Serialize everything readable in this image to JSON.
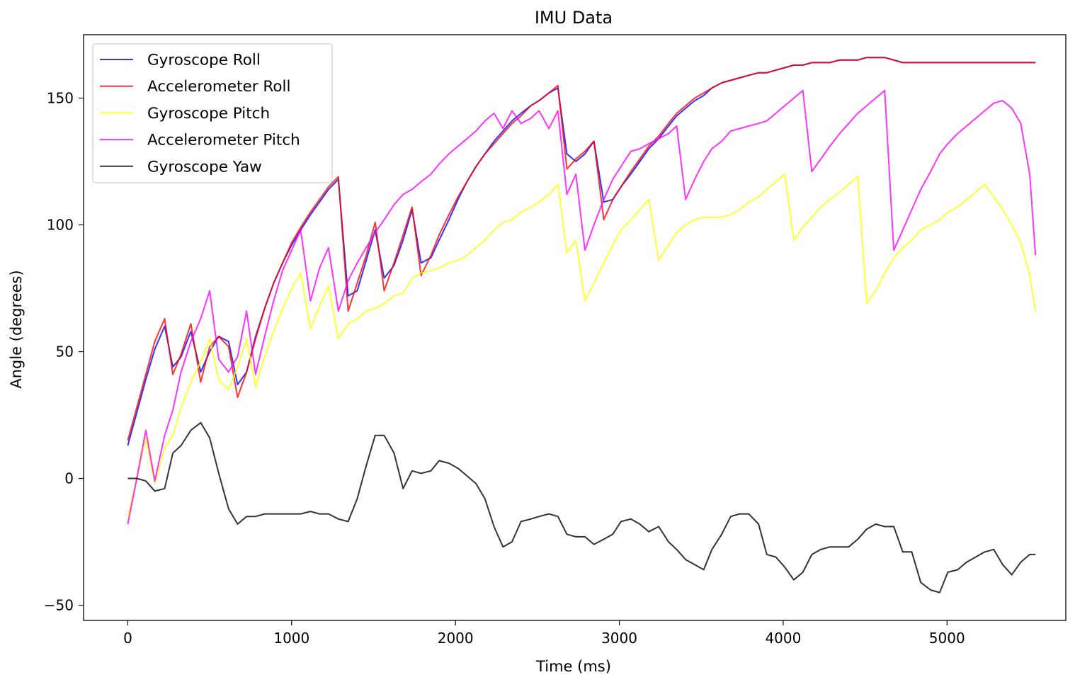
{
  "chart_data": {
    "type": "line",
    "title": "IMU Data",
    "xlabel": "Time (ms)",
    "ylabel": "Angle (degrees)",
    "xlim": [
      -270,
      5725
    ],
    "ylim": [
      -56,
      175
    ],
    "xticks": [
      0,
      1000,
      2000,
      3000,
      4000,
      5000
    ],
    "yticks": [
      -50,
      0,
      50,
      100,
      150
    ],
    "xtick_labels": [
      "0",
      "1000",
      "2000",
      "3000",
      "4000",
      "5000"
    ],
    "ytick_labels": [
      "−50",
      "0",
      "50",
      "100",
      "150"
    ],
    "grid": false,
    "legend_position": "top-left",
    "series": [
      {
        "name": "Gyroscope Roll",
        "color": "#0000ff",
        "x": [
          0,
          55,
          110,
          165,
          225,
          275,
          325,
          385,
          445,
          500,
          555,
          615,
          670,
          725,
          780,
          835,
          890,
          945,
          1000,
          1055,
          1115,
          1170,
          1225,
          1285,
          1345,
          1400,
          1455,
          1510,
          1565,
          1625,
          1680,
          1735,
          1790,
          1850,
          1900,
          1960,
          2015,
          2070,
          2125,
          2180,
          2235,
          2290,
          2345,
          2400,
          2460,
          2510,
          2570,
          2625,
          2680,
          2735,
          2790,
          2845,
          2905,
          2960,
          3010,
          3070,
          3125,
          3180,
          3240,
          3300,
          3350,
          3405,
          3460,
          3515,
          3565,
          3625,
          3680,
          3735,
          3790,
          3850,
          3900,
          3955,
          4010,
          4065,
          4120,
          4175,
          4230,
          4285,
          4345,
          4400,
          4455,
          4510,
          4565,
          4620,
          4675,
          4730,
          4785,
          4840,
          4900,
          4955,
          5005,
          5065,
          5120,
          5175,
          5230,
          5285,
          5340,
          5395,
          5450,
          5505,
          5540
        ],
        "y": [
          13,
          26,
          39,
          51,
          60,
          44,
          48,
          58,
          42,
          50,
          56,
          54,
          37,
          42,
          56,
          67,
          77,
          85,
          92,
          98,
          104,
          109,
          114,
          118,
          72,
          74,
          86,
          98,
          79,
          84,
          94,
          106,
          85,
          87,
          94,
          102,
          110,
          117,
          123,
          128,
          133,
          137,
          141,
          144,
          147,
          149,
          152,
          154,
          128,
          125,
          128,
          133,
          109,
          110,
          115,
          120,
          125,
          130,
          134,
          139,
          143,
          146,
          149,
          151,
          154,
          156,
          157,
          158,
          159,
          160,
          160,
          161,
          162,
          163,
          163,
          164,
          164,
          164,
          165,
          165,
          165,
          166,
          166,
          166,
          165,
          164,
          164,
          164,
          164,
          164,
          164,
          164,
          164,
          164,
          164,
          164,
          164,
          164,
          164,
          164,
          164
        ]
      },
      {
        "name": "Accelerometer Roll",
        "color": "#ff0000",
        "x": [
          0,
          55,
          110,
          165,
          225,
          275,
          325,
          385,
          445,
          500,
          555,
          615,
          670,
          725,
          780,
          835,
          890,
          945,
          1000,
          1055,
          1115,
          1170,
          1225,
          1285,
          1345,
          1400,
          1455,
          1510,
          1565,
          1625,
          1680,
          1735,
          1790,
          1850,
          1900,
          1960,
          2015,
          2070,
          2125,
          2180,
          2235,
          2290,
          2345,
          2400,
          2460,
          2510,
          2570,
          2625,
          2680,
          2735,
          2790,
          2845,
          2905,
          2960,
          3010,
          3070,
          3125,
          3180,
          3240,
          3300,
          3350,
          3405,
          3460,
          3515,
          3565,
          3625,
          3680,
          3735,
          3790,
          3850,
          3900,
          3955,
          4010,
          4065,
          4120,
          4175,
          4230,
          4285,
          4345,
          4400,
          4455,
          4510,
          4565,
          4620,
          4675,
          4730,
          4785,
          4840,
          4900,
          4955,
          5005,
          5065,
          5120,
          5175,
          5230,
          5285,
          5340,
          5395,
          5450,
          5505,
          5540
        ],
        "y": [
          15,
          28,
          41,
          54,
          63,
          41,
          49,
          61,
          38,
          52,
          56,
          52,
          32,
          42,
          55,
          67,
          77,
          85,
          93,
          99,
          105,
          110,
          115,
          119,
          66,
          77,
          88,
          101,
          74,
          85,
          96,
          107,
          80,
          88,
          96,
          104,
          111,
          117,
          123,
          128,
          132,
          136,
          140,
          143,
          147,
          149,
          152,
          155,
          122,
          126,
          129,
          133,
          102,
          110,
          115,
          121,
          126,
          131,
          135,
          140,
          144,
          147,
          150,
          152,
          154,
          156,
          157,
          158,
          159,
          160,
          160,
          161,
          162,
          163,
          163,
          164,
          164,
          164,
          165,
          165,
          165,
          166,
          166,
          166,
          165,
          164,
          164,
          164,
          164,
          164,
          164,
          164,
          164,
          164,
          164,
          164,
          164,
          164,
          164,
          164,
          164
        ]
      },
      {
        "name": "Gyroscope Pitch",
        "color": "#ffff00",
        "x": [
          0,
          55,
          110,
          165,
          225,
          275,
          325,
          385,
          445,
          500,
          555,
          615,
          670,
          725,
          780,
          835,
          890,
          945,
          1000,
          1055,
          1115,
          1170,
          1225,
          1285,
          1345,
          1400,
          1455,
          1510,
          1565,
          1625,
          1680,
          1735,
          1790,
          1850,
          1900,
          1960,
          2015,
          2070,
          2125,
          2180,
          2235,
          2290,
          2345,
          2400,
          2460,
          2510,
          2570,
          2625,
          2680,
          2735,
          2790,
          2845,
          2905,
          2960,
          3010,
          3070,
          3125,
          3180,
          3240,
          3300,
          3350,
          3405,
          3460,
          3515,
          3565,
          3625,
          3680,
          3735,
          3790,
          3850,
          3900,
          3955,
          4010,
          4065,
          4120,
          4175,
          4230,
          4285,
          4345,
          4400,
          4455,
          4510,
          4565,
          4620,
          4675,
          4730,
          4785,
          4840,
          4900,
          4955,
          5005,
          5065,
          5120,
          5175,
          5230,
          5285,
          5340,
          5395,
          5450,
          5505,
          5540
        ],
        "y": [
          -15,
          0,
          16,
          -2,
          12,
          17,
          28,
          38,
          46,
          55,
          39,
          35,
          44,
          55,
          36,
          48,
          58,
          67,
          75,
          81,
          59,
          68,
          76,
          55,
          61,
          63,
          66,
          67,
          69,
          72,
          73,
          79,
          81,
          82,
          83,
          85,
          86,
          88,
          91,
          94,
          98,
          101,
          102,
          105,
          107,
          109,
          112,
          116,
          89,
          94,
          70,
          77,
          85,
          92,
          98,
          102,
          106,
          110,
          86,
          92,
          97,
          100,
          102,
          103,
          103,
          103,
          104,
          106,
          109,
          111,
          114,
          117,
          120,
          94,
          99,
          103,
          107,
          110,
          113,
          116,
          119,
          69,
          74,
          81,
          87,
          91,
          94,
          98,
          100,
          102,
          105,
          107,
          110,
          113,
          116,
          111,
          106,
          100,
          93,
          80,
          66
        ]
      },
      {
        "name": "Accelerometer Pitch",
        "color": "#ff00ff",
        "x": [
          0,
          55,
          110,
          165,
          225,
          275,
          325,
          385,
          445,
          500,
          555,
          615,
          670,
          725,
          780,
          835,
          890,
          945,
          1000,
          1055,
          1115,
          1170,
          1225,
          1285,
          1345,
          1400,
          1455,
          1510,
          1565,
          1625,
          1680,
          1735,
          1790,
          1850,
          1900,
          1960,
          2015,
          2070,
          2125,
          2180,
          2235,
          2290,
          2345,
          2400,
          2460,
          2510,
          2570,
          2625,
          2680,
          2735,
          2790,
          2845,
          2905,
          2960,
          3010,
          3070,
          3125,
          3180,
          3240,
          3300,
          3350,
          3405,
          3460,
          3515,
          3565,
          3625,
          3680,
          3735,
          3790,
          3850,
          3900,
          3955,
          4010,
          4065,
          4120,
          4175,
          4230,
          4285,
          4345,
          4400,
          4455,
          4510,
          4565,
          4620,
          4675,
          4730,
          4785,
          4840,
          4900,
          4955,
          5005,
          5065,
          5120,
          5175,
          5230,
          5285,
          5340,
          5395,
          5450,
          5505,
          5540
        ],
        "y": [
          -18,
          0,
          19,
          -1,
          17,
          27,
          42,
          54,
          63,
          74,
          47,
          42,
          48,
          66,
          41,
          56,
          70,
          82,
          90,
          98,
          70,
          83,
          91,
          66,
          78,
          85,
          91,
          97,
          102,
          108,
          112,
          114,
          117,
          120,
          124,
          128,
          131,
          134,
          137,
          141,
          144,
          138,
          145,
          140,
          142,
          145,
          138,
          145,
          112,
          120,
          90,
          100,
          110,
          118,
          123,
          129,
          130,
          132,
          134,
          136,
          139,
          110,
          118,
          125,
          130,
          133,
          137,
          138,
          139,
          140,
          141,
          144,
          147,
          150,
          153,
          121,
          126,
          131,
          136,
          140,
          144,
          147,
          150,
          153,
          90,
          98,
          106,
          114,
          121,
          128,
          132,
          136,
          139,
          142,
          145,
          148,
          149,
          146,
          140,
          120,
          88
        ]
      },
      {
        "name": "Gyroscope Yaw",
        "color": "#000000",
        "x": [
          0,
          55,
          110,
          165,
          225,
          275,
          325,
          385,
          445,
          500,
          555,
          615,
          670,
          725,
          780,
          835,
          890,
          945,
          1000,
          1055,
          1115,
          1170,
          1225,
          1285,
          1345,
          1400,
          1455,
          1510,
          1565,
          1625,
          1680,
          1735,
          1790,
          1850,
          1900,
          1960,
          2015,
          2070,
          2125,
          2180,
          2235,
          2290,
          2345,
          2400,
          2460,
          2510,
          2570,
          2625,
          2680,
          2735,
          2790,
          2845,
          2905,
          2960,
          3010,
          3070,
          3125,
          3180,
          3240,
          3300,
          3350,
          3405,
          3460,
          3515,
          3565,
          3625,
          3680,
          3735,
          3790,
          3850,
          3900,
          3955,
          4010,
          4065,
          4120,
          4175,
          4230,
          4285,
          4345,
          4400,
          4455,
          4510,
          4565,
          4620,
          4675,
          4730,
          4785,
          4840,
          4900,
          4955,
          5005,
          5065,
          5120,
          5175,
          5230,
          5285,
          5340,
          5395,
          5450,
          5505,
          5540
        ],
        "y": [
          0,
          0,
          -1,
          -5,
          -4,
          10,
          13,
          19,
          22,
          16,
          2,
          -12,
          -18,
          -15,
          -15,
          -14,
          -14,
          -14,
          -14,
          -14,
          -13,
          -14,
          -14,
          -16,
          -17,
          -8,
          5,
          17,
          17,
          10,
          -4,
          3,
          2,
          3,
          7,
          6,
          4,
          1,
          -2,
          -8,
          -19,
          -27,
          -25,
          -17,
          -16,
          -15,
          -14,
          -15,
          -22,
          -23,
          -23,
          -26,
          -24,
          -22,
          -17,
          -16,
          -18,
          -21,
          -19,
          -25,
          -28,
          -32,
          -34,
          -36,
          -28,
          -22,
          -15,
          -14,
          -14,
          -18,
          -30,
          -31,
          -35,
          -40,
          -37,
          -30,
          -28,
          -27,
          -27,
          -27,
          -24,
          -20,
          -18,
          -19,
          -19,
          -29,
          -29,
          -41,
          -44,
          -45,
          -37,
          -36,
          -33,
          -31,
          -29,
          -28,
          -34,
          -38,
          -33,
          -30,
          -30
        ]
      }
    ]
  }
}
